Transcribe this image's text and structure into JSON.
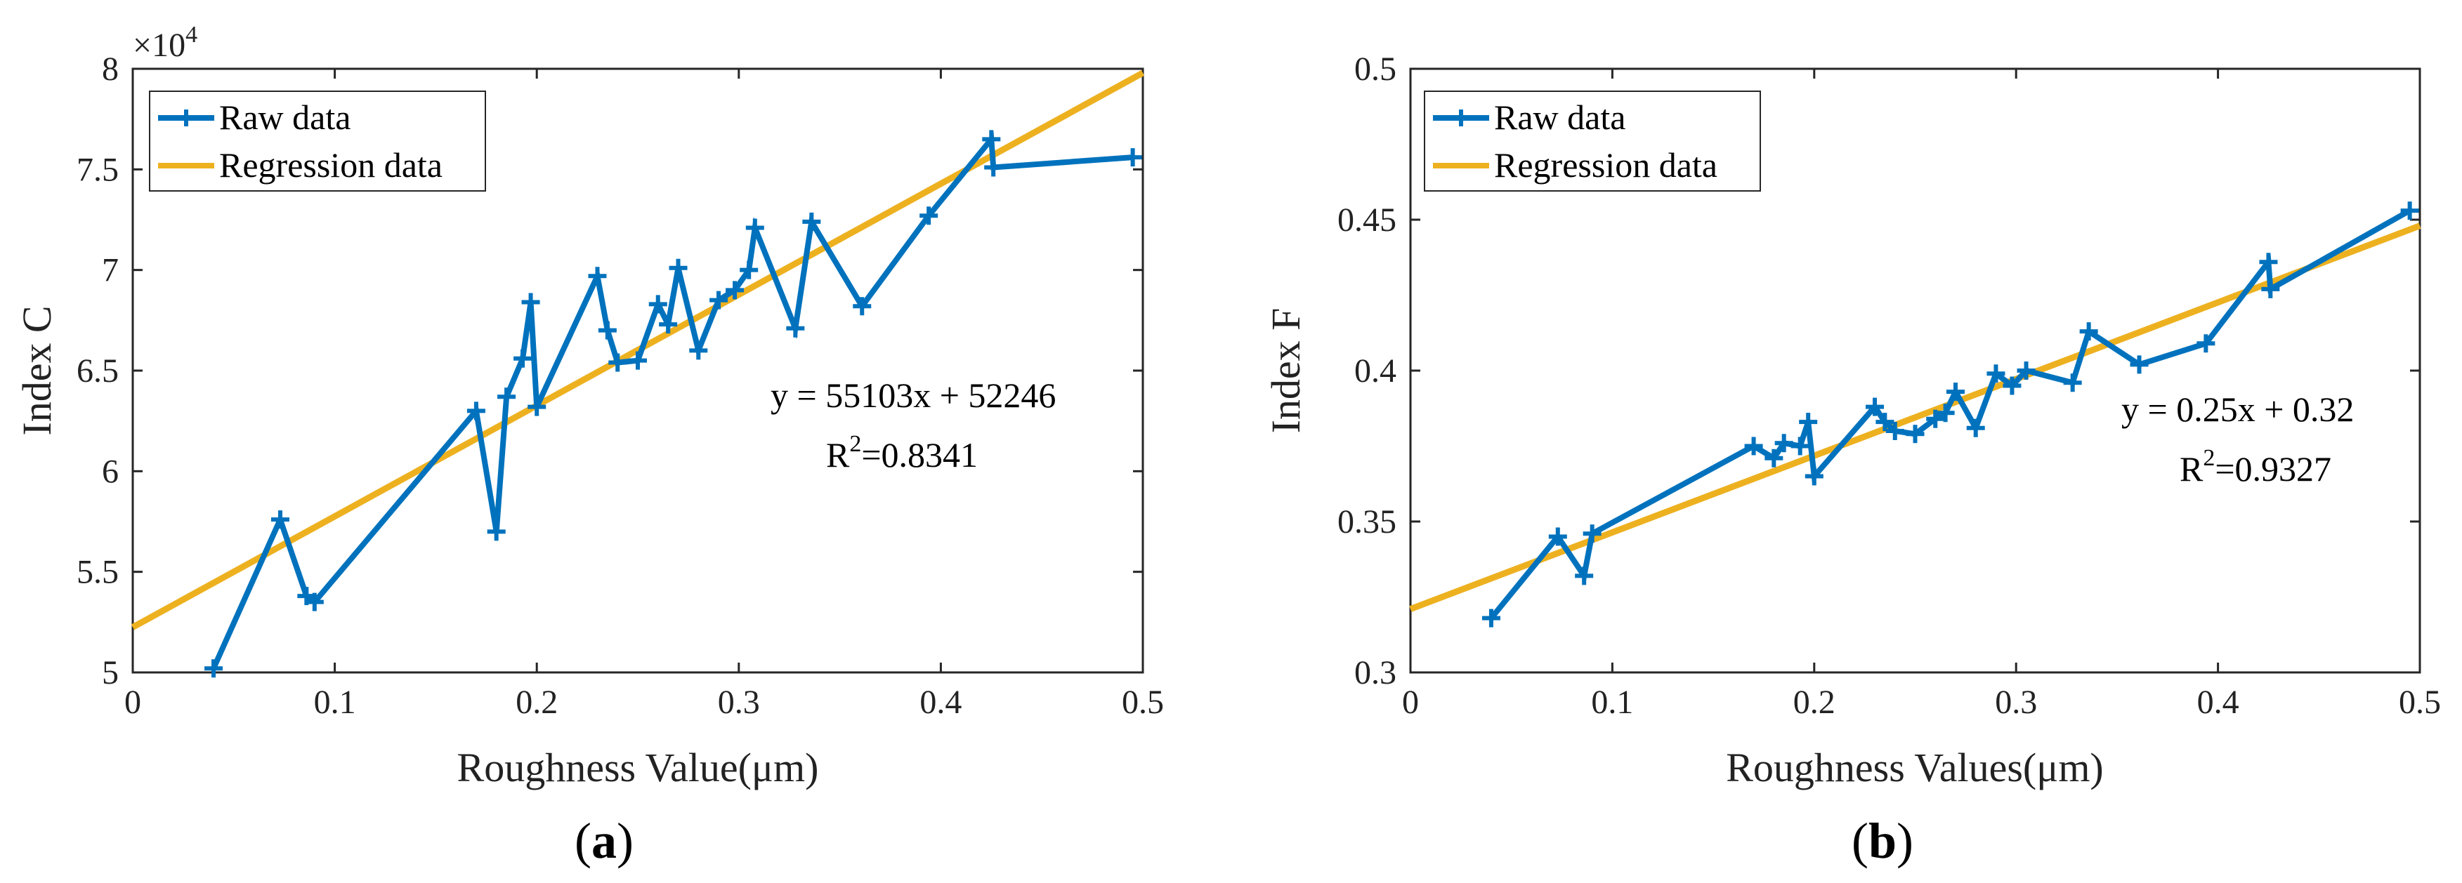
{
  "colors": {
    "raw": "#0072BD",
    "regression": "#EDB120",
    "axis": "#262626",
    "text": "#000000"
  },
  "chart_data": [
    {
      "type": "line",
      "panel_label": {
        "open": "(",
        "letter": "a",
        "close": ")"
      },
      "xlabel": "Roughness Value(μm)",
      "ylabel": "Index C",
      "xlim": [
        0,
        0.5
      ],
      "ylim": [
        50000,
        80000
      ],
      "xticks": [
        0,
        0.1,
        0.2,
        0.3,
        0.4,
        0.5
      ],
      "xtick_labels": [
        "0",
        "0.1",
        "0.2",
        "0.3",
        "0.4",
        "0.5"
      ],
      "yticks": [
        50000,
        55000,
        60000,
        65000,
        70000,
        75000,
        80000
      ],
      "ytick_labels": [
        "5",
        "5.5",
        "6",
        "6.5",
        "7",
        "7.5",
        "8"
      ],
      "exponent": {
        "base": "×10",
        "power": "4"
      },
      "legend": [
        "Raw data",
        "Regression data"
      ],
      "legend_position": "top-left",
      "equation": "y = 55103x + 52246",
      "r2": {
        "prefix": "R",
        "sup": "2",
        "value": "=0.8341"
      },
      "series": [
        {
          "name": "Raw data",
          "x": [
            0.04,
            0.073,
            0.086,
            0.09,
            0.17,
            0.18,
            0.185,
            0.193,
            0.197,
            0.2,
            0.23,
            0.235,
            0.24,
            0.25,
            0.26,
            0.265,
            0.27,
            0.28,
            0.29,
            0.298,
            0.305,
            0.308,
            0.328,
            0.336,
            0.361,
            0.394,
            0.425,
            0.426,
            0.495
          ],
          "y": [
            50200,
            57600,
            53800,
            53500,
            63000,
            57000,
            63700,
            65600,
            68400,
            63200,
            69700,
            67000,
            65400,
            65500,
            68300,
            67300,
            70100,
            66000,
            68500,
            69000,
            70000,
            72100,
            67100,
            72400,
            68200,
            72700,
            76500,
            75100,
            75600
          ]
        },
        {
          "name": "Regression data",
          "x": [
            0,
            0.5
          ],
          "y": [
            52246,
            79797.5
          ]
        }
      ]
    },
    {
      "type": "line",
      "panel_label": {
        "open": "(",
        "letter": "b",
        "close": ")"
      },
      "xlabel": "Roughness Values(μm)",
      "ylabel": "Index  F",
      "xlim": [
        0,
        0.5
      ],
      "ylim": [
        0.3,
        0.5
      ],
      "xticks": [
        0,
        0.1,
        0.2,
        0.3,
        0.4,
        0.5
      ],
      "xtick_labels": [
        "0",
        "0.1",
        "0.2",
        "0.3",
        "0.4",
        "0.5"
      ],
      "yticks": [
        0.3,
        0.35,
        0.4,
        0.45,
        0.5
      ],
      "ytick_labels": [
        "0.3",
        "0.35",
        "0.4",
        "0.45",
        "0.5"
      ],
      "legend": [
        "Raw data",
        "Regression data"
      ],
      "legend_position": "top-left",
      "equation": "y = 0.25x + 0.32",
      "r2": {
        "prefix": "R",
        "sup": "2",
        "value": "=0.9327"
      },
      "series": [
        {
          "name": "Raw data",
          "x": [
            0.04,
            0.073,
            0.086,
            0.09,
            0.17,
            0.18,
            0.185,
            0.193,
            0.197,
            0.2,
            0.23,
            0.235,
            0.24,
            0.25,
            0.26,
            0.265,
            0.27,
            0.28,
            0.29,
            0.298,
            0.305,
            0.328,
            0.336,
            0.361,
            0.394,
            0.425,
            0.426,
            0.495
          ],
          "y": [
            0.318,
            0.345,
            0.332,
            0.346,
            0.375,
            0.371,
            0.376,
            0.375,
            0.383,
            0.365,
            0.388,
            0.383,
            0.38,
            0.379,
            0.384,
            0.386,
            0.393,
            0.381,
            0.399,
            0.395,
            0.4,
            0.396,
            0.413,
            0.402,
            0.409,
            0.436,
            0.427,
            0.453
          ]
        },
        {
          "name": "Regression data",
          "x": [
            0,
            0.5
          ],
          "y": [
            0.321,
            0.448
          ]
        }
      ]
    }
  ]
}
